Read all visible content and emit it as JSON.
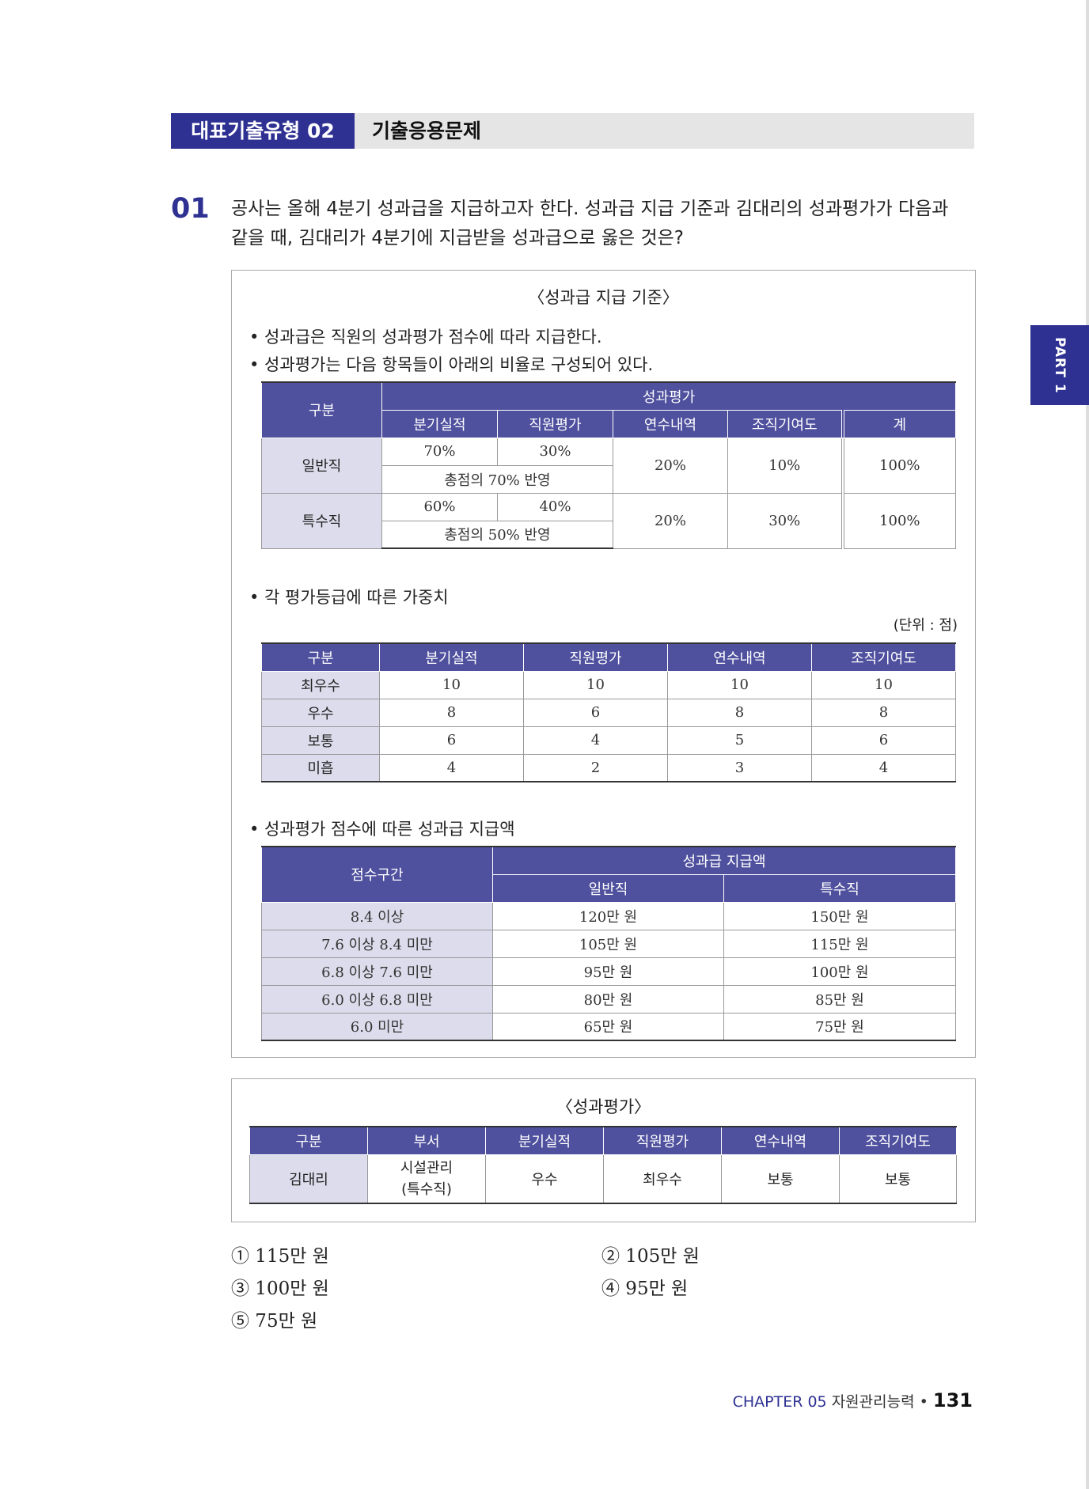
{
  "banner": {
    "category": "대표기출유형 02",
    "title": "기출응용문제"
  },
  "part_tab": "PART 1",
  "question": {
    "number": "01",
    "line1": "공사는 올해 4분기 성과급을 지급하고자 한다. 성과급 지급 기준과 김대리의 성과평가가 다음과",
    "line2": "같을 때, 김대리가 4분기에 지급받을 성과급으로 옳은 것은?"
  },
  "criteria_box": {
    "title": "〈성과급 지급 기준〉",
    "bullet1": "• 성과급은 직원의 성과평가 점수에 따라 지급한다.",
    "bullet2": "• 성과평가는 다음 항목들이 아래의 비율로 구성되어 있다.",
    "ratio_table": {
      "h_category": "구분",
      "h_eval": "성과평가",
      "h_quarter": "분기실적",
      "h_staff": "직원평가",
      "h_training": "연수내역",
      "h_contrib": "조직기여도",
      "h_total": "계",
      "rows": [
        {
          "label": "일반직",
          "quarter": "70%",
          "staff": "30%",
          "reflect": "총점의 70% 반영",
          "training": "20%",
          "contrib": "10%",
          "total": "100%"
        },
        {
          "label": "특수직",
          "quarter": "60%",
          "staff": "40%",
          "reflect": "총점의 50% 반영",
          "training": "20%",
          "contrib": "30%",
          "total": "100%"
        }
      ]
    },
    "bullet3": "• 각 평가등급에 따른 가중치",
    "unit": "(단위 : 점)",
    "weight_table": {
      "headers": [
        "구분",
        "분기실적",
        "직원평가",
        "연수내역",
        "조직기여도"
      ],
      "rows": [
        [
          "최우수",
          "10",
          "10",
          "10",
          "10"
        ],
        [
          "우수",
          "8",
          "6",
          "8",
          "8"
        ],
        [
          "보통",
          "6",
          "4",
          "5",
          "6"
        ],
        [
          "미흡",
          "4",
          "2",
          "3",
          "4"
        ]
      ]
    },
    "bullet4": "• 성과평가 점수에 따른 성과급 지급액",
    "pay_table": {
      "h_range": "점수구간",
      "h_pay": "성과급 지급액",
      "h_general": "일반직",
      "h_special": "특수직",
      "rows": [
        [
          "8.4 이상",
          "120만 원",
          "150만 원"
        ],
        [
          "7.6 이상 8.4 미만",
          "105만 원",
          "115만 원"
        ],
        [
          "6.8 이상 7.6 미만",
          "95만 원",
          "100만 원"
        ],
        [
          "6.0 이상 6.8 미만",
          "80만 원",
          "85만 원"
        ],
        [
          "6.0 미만",
          "65만 원",
          "75만 원"
        ]
      ]
    }
  },
  "eval_box": {
    "title": "〈성과평가〉",
    "headers": [
      "구분",
      "부서",
      "분기실적",
      "직원평가",
      "연수내역",
      "조직기여도"
    ],
    "row": {
      "name": "김대리",
      "dept1": "시설관리",
      "dept2": "(특수직)",
      "quarter": "우수",
      "staff": "최우수",
      "training": "보통",
      "contrib": "보통"
    }
  },
  "options": [
    "① 115만 원",
    "② 105만 원",
    "③ 100만 원",
    "④ 95만 원",
    "⑤ 75만 원"
  ],
  "footer": {
    "chapter": "CHAPTER 05",
    "subject": "자원관리능력",
    "sep": "•",
    "page": "131"
  }
}
